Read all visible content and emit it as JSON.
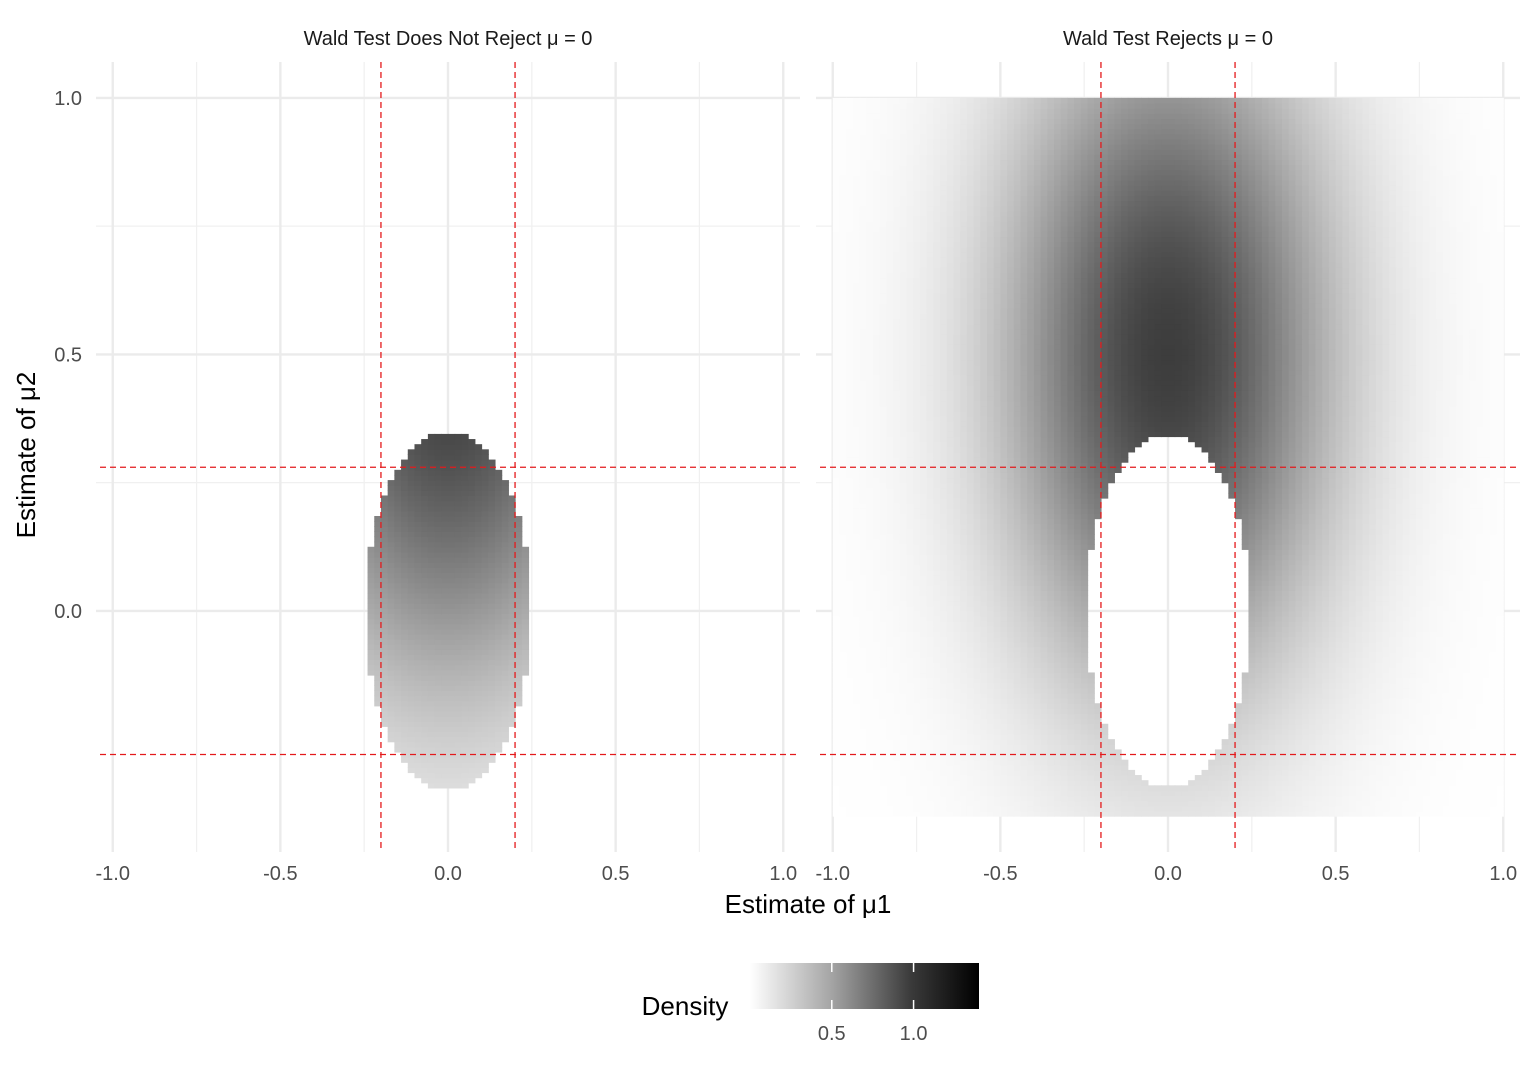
{
  "chart_data": {
    "type": "heatmap",
    "xlabel": "Estimate of μ1",
    "ylabel": "Estimate of μ2",
    "xlim": [
      -1.05,
      1.05
    ],
    "ylim": [
      -0.47,
      1.07
    ],
    "x_ticks": [
      -1.0,
      -0.5,
      0.0,
      0.5,
      1.0
    ],
    "x_tick_labels": [
      "-1.0",
      "-0.5",
      "0.0",
      "0.5",
      "1.0"
    ],
    "y_ticks": [
      0.0,
      0.5,
      1.0
    ],
    "y_tick_labels": [
      "0.0",
      "0.5",
      "1.0"
    ],
    "grid": true,
    "panels": [
      {
        "title": "Wald Test Does Not Reject μ = 0",
        "region": "inside acceptance ellipse",
        "ellipse": {
          "center": [
            0.0,
            0.0
          ],
          "semi_axis_mu1": 0.245,
          "semi_axis_mu2": 0.345
        }
      },
      {
        "title": "Wald Test Rejects μ = 0",
        "region": "outside acceptance ellipse",
        "ellipse": {
          "center": [
            0.0,
            0.0
          ],
          "semi_axis_mu1": 0.245,
          "semi_axis_mu2": 0.345
        },
        "mu1_range": [
          -1.0,
          1.0
        ],
        "mu2_range": [
          -0.4,
          1.0
        ]
      }
    ],
    "density": {
      "mean": [
        0.0,
        0.5
      ],
      "sd": [
        0.34,
        0.45
      ],
      "peak": 1.4
    },
    "reference_lines": {
      "vertical_mu1": [
        -0.2,
        0.2
      ],
      "horizontal_mu2": [
        0.28,
        -0.28
      ],
      "color": "#e41a1c",
      "style": "dashed"
    },
    "legend": {
      "title": "Density",
      "placement": "bottom",
      "range": [
        0.0,
        1.4
      ],
      "breaks": [
        0.5,
        1.0
      ],
      "break_labels": [
        "0.5",
        "1.0"
      ],
      "low_color": "#ffffff",
      "high_color": "#000000"
    }
  }
}
